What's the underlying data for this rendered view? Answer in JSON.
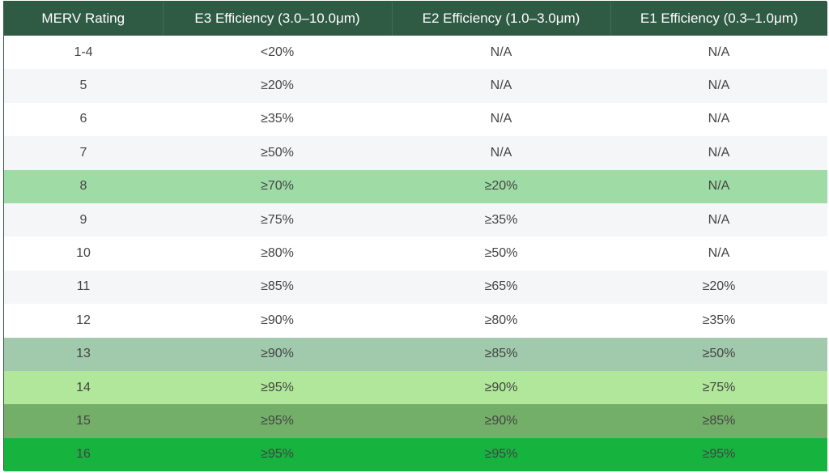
{
  "table": {
    "headers": [
      "MERV Rating",
      "E3 Efficiency (3.0–10.0μm)",
      "E2 Efficiency (1.0–3.0μm)",
      "E1 Efficiency (0.3–1.0μm)"
    ],
    "rows": [
      {
        "cells": [
          "1-4",
          "<20%",
          "N/A",
          "N/A"
        ],
        "highlight": null
      },
      {
        "cells": [
          "5",
          "≥20%",
          "N/A",
          "N/A"
        ],
        "highlight": null
      },
      {
        "cells": [
          "6",
          "≥35%",
          "N/A",
          "N/A"
        ],
        "highlight": null
      },
      {
        "cells": [
          "7",
          "≥50%",
          "N/A",
          "N/A"
        ],
        "highlight": null
      },
      {
        "cells": [
          "8",
          "≥70%",
          "≥20%",
          "N/A"
        ],
        "highlight": "#9fdba5"
      },
      {
        "cells": [
          "9",
          "≥75%",
          "≥35%",
          "N/A"
        ],
        "highlight": null
      },
      {
        "cells": [
          "10",
          "≥80%",
          "≥50%",
          "N/A"
        ],
        "highlight": null
      },
      {
        "cells": [
          "11",
          "≥85%",
          "≥65%",
          "≥20%"
        ],
        "highlight": null
      },
      {
        "cells": [
          "12",
          "≥90%",
          "≥80%",
          "≥35%"
        ],
        "highlight": null
      },
      {
        "cells": [
          "13",
          "≥90%",
          "≥85%",
          "≥50%"
        ],
        "highlight": "#a1c9ab"
      },
      {
        "cells": [
          "14",
          "≥95%",
          "≥90%",
          "≥75%"
        ],
        "highlight": "#b1e79a"
      },
      {
        "cells": [
          "15",
          "≥95%",
          "≥90%",
          "≥85%"
        ],
        "highlight": "#74af69"
      },
      {
        "cells": [
          "16",
          "≥95%",
          "≥95%",
          "≥95%"
        ],
        "highlight": "#17b33f"
      }
    ]
  },
  "colors": {
    "header_bg": "#2f5b45",
    "header_text": "#ffffff",
    "row_white": "#ffffff",
    "row_grey": "#f5f6f8",
    "body_text": "#444444"
  }
}
